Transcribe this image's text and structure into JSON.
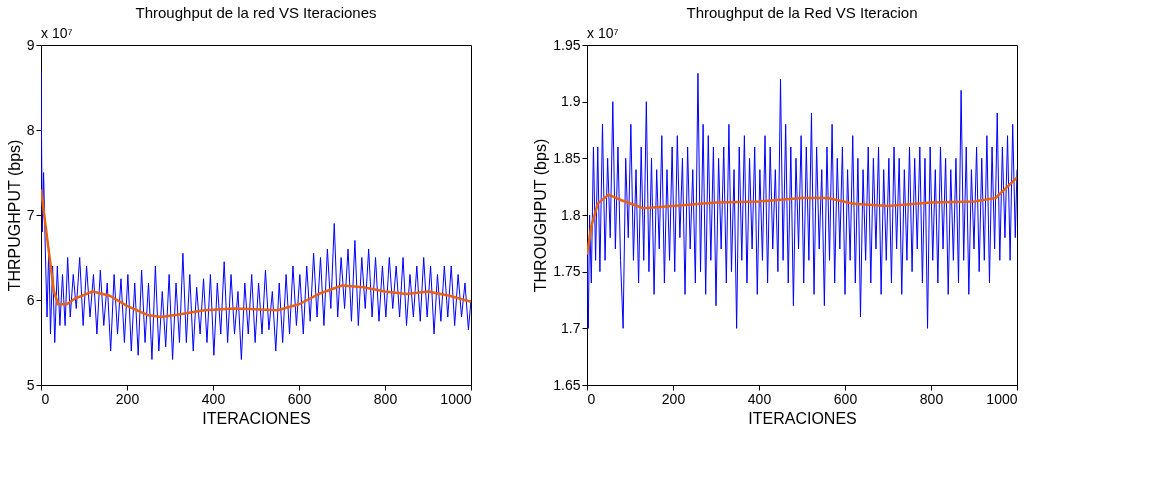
{
  "chart_data": [
    {
      "type": "line",
      "title": "Throughput de la red VS Iteraciones",
      "xlabel": "ITERACIONES",
      "ylabel": "THRPUGHPUT (bps)",
      "annotations": [
        "x 10⁷"
      ],
      "xlim": [
        0,
        1000
      ],
      "xticks": [
        0,
        200,
        400,
        600,
        800,
        1000
      ],
      "ylim": [
        5,
        9
      ],
      "yticks": [
        5,
        6,
        7,
        8,
        9
      ],
      "series": [
        {
          "color": "#0000ff",
          "x": [
            0,
            3,
            6,
            10,
            14,
            18,
            22,
            27,
            32,
            38,
            44,
            50,
            56,
            62,
            68,
            75,
            82,
            90,
            98,
            106,
            114,
            122,
            130,
            138,
            146,
            154,
            162,
            170,
            178,
            186,
            194,
            202,
            210,
            218,
            226,
            234,
            242,
            250,
            258,
            266,
            274,
            282,
            290,
            298,
            306,
            314,
            322,
            330,
            338,
            346,
            354,
            362,
            370,
            378,
            386,
            394,
            402,
            410,
            418,
            426,
            434,
            442,
            450,
            458,
            466,
            474,
            482,
            490,
            498,
            506,
            514,
            522,
            530,
            538,
            546,
            554,
            562,
            570,
            578,
            586,
            594,
            602,
            610,
            618,
            626,
            634,
            642,
            650,
            658,
            666,
            674,
            682,
            690,
            698,
            706,
            714,
            722,
            730,
            738,
            746,
            754,
            762,
            770,
            778,
            786,
            794,
            802,
            810,
            818,
            826,
            834,
            842,
            850,
            858,
            866,
            874,
            882,
            890,
            898,
            906,
            914,
            922,
            930,
            938,
            946,
            954,
            962,
            970,
            978,
            986,
            994,
            1000
          ],
          "values": [
            8.7,
            6.8,
            7.5,
            6.6,
            5.8,
            6.6,
            5.6,
            6.4,
            5.5,
            6.4,
            5.7,
            6.3,
            5.7,
            6.5,
            5.8,
            6.3,
            5.9,
            6.5,
            5.7,
            6.4,
            5.8,
            6.3,
            5.6,
            6.35,
            5.7,
            6.2,
            5.4,
            6.3,
            5.6,
            6.25,
            5.5,
            6.3,
            5.4,
            6.2,
            5.35,
            6.35,
            5.5,
            6.2,
            5.3,
            6.4,
            5.4,
            6.1,
            5.45,
            6.3,
            5.3,
            6.2,
            5.5,
            6.55,
            5.5,
            6.3,
            5.4,
            6.15,
            5.6,
            6.25,
            5.5,
            6.3,
            5.35,
            6.2,
            5.6,
            6.45,
            5.5,
            6.3,
            5.6,
            6.1,
            5.3,
            6.2,
            5.6,
            6.3,
            5.5,
            6.2,
            5.6,
            6.35,
            5.65,
            6.1,
            5.4,
            6.2,
            5.5,
            6.3,
            5.6,
            6.4,
            5.7,
            6.3,
            5.6,
            6.4,
            5.75,
            6.55,
            5.8,
            6.5,
            5.7,
            6.6,
            5.9,
            6.9,
            5.8,
            6.5,
            5.9,
            6.6,
            5.75,
            6.7,
            5.7,
            6.5,
            5.9,
            6.6,
            5.8,
            6.5,
            5.75,
            6.4,
            5.8,
            6.5,
            5.9,
            6.4,
            5.8,
            6.5,
            5.7,
            6.3,
            5.8,
            6.4,
            5.75,
            6.5,
            5.8,
            6.4,
            5.6,
            6.3,
            5.75,
            6.4,
            5.8,
            6.4,
            5.7,
            6.3,
            5.8,
            6.2,
            5.65,
            6.0
          ]
        },
        {
          "color": "#e8620c",
          "x": [
            0,
            10,
            20,
            30,
            40,
            60,
            80,
            120,
            160,
            200,
            250,
            280,
            320,
            380,
            450,
            550,
            600,
            650,
            700,
            750,
            800,
            850,
            900,
            950,
            1000
          ],
          "values": [
            7.3,
            6.9,
            6.5,
            6.1,
            5.95,
            5.95,
            6.02,
            6.1,
            6.05,
            5.93,
            5.82,
            5.8,
            5.83,
            5.88,
            5.9,
            5.88,
            5.95,
            6.08,
            6.17,
            6.15,
            6.1,
            6.07,
            6.1,
            6.05,
            5.98
          ]
        }
      ]
    },
    {
      "type": "line",
      "title": "Throughput de la Red VS Iteracion",
      "xlabel": "ITERACIONES",
      "ylabel": "THROUGHPUT (bps)",
      "annotations": [
        "x 10⁷"
      ],
      "xlim": [
        0,
        1000
      ],
      "xticks": [
        0,
        200,
        400,
        600,
        800,
        1000
      ],
      "ylim": [
        1.65,
        1.95
      ],
      "yticks": [
        1.65,
        1.7,
        1.75,
        1.8,
        1.85,
        1.9,
        1.95
      ],
      "series": [
        {
          "color": "#0000ff",
          "x": [
            0,
            3,
            6,
            10,
            15,
            20,
            25,
            30,
            36,
            42,
            48,
            54,
            60,
            66,
            72,
            78,
            84,
            90,
            96,
            102,
            108,
            114,
            120,
            126,
            132,
            138,
            144,
            150,
            156,
            162,
            168,
            174,
            180,
            186,
            192,
            198,
            204,
            210,
            216,
            222,
            228,
            234,
            240,
            246,
            252,
            258,
            264,
            270,
            276,
            282,
            288,
            294,
            300,
            306,
            312,
            318,
            324,
            330,
            336,
            342,
            348,
            354,
            360,
            366,
            372,
            378,
            384,
            390,
            396,
            402,
            408,
            414,
            420,
            426,
            432,
            438,
            444,
            450,
            456,
            462,
            468,
            474,
            480,
            486,
            492,
            498,
            504,
            510,
            516,
            522,
            528,
            534,
            540,
            546,
            552,
            558,
            564,
            570,
            576,
            582,
            588,
            594,
            600,
            606,
            612,
            618,
            624,
            630,
            636,
            642,
            648,
            654,
            660,
            666,
            672,
            678,
            684,
            690,
            696,
            702,
            708,
            714,
            720,
            726,
            732,
            738,
            744,
            750,
            756,
            762,
            768,
            774,
            780,
            786,
            792,
            798,
            804,
            810,
            816,
            822,
            828,
            834,
            840,
            846,
            852,
            858,
            864,
            870,
            876,
            882,
            888,
            894,
            900,
            906,
            912,
            918,
            924,
            930,
            936,
            942,
            948,
            954,
            960,
            966,
            972,
            978,
            984,
            990,
            996,
            1000
          ],
          "values": [
            1.77,
            1.7,
            1.8,
            1.74,
            1.86,
            1.76,
            1.86,
            1.75,
            1.88,
            1.76,
            1.85,
            1.78,
            1.9,
            1.77,
            1.86,
            1.76,
            1.7,
            1.85,
            1.78,
            1.88,
            1.76,
            1.84,
            1.74,
            1.86,
            1.76,
            1.9,
            1.75,
            1.85,
            1.73,
            1.84,
            1.77,
            1.87,
            1.74,
            1.84,
            1.76,
            1.86,
            1.75,
            1.87,
            1.78,
            1.85,
            1.73,
            1.86,
            1.77,
            1.84,
            1.74,
            1.925,
            1.75,
            1.88,
            1.73,
            1.87,
            1.76,
            1.86,
            1.72,
            1.85,
            1.77,
            1.86,
            1.74,
            1.88,
            1.75,
            1.84,
            1.7,
            1.86,
            1.76,
            1.87,
            1.74,
            1.85,
            1.77,
            1.86,
            1.73,
            1.84,
            1.76,
            1.87,
            1.74,
            1.86,
            1.77,
            1.84,
            1.75,
            1.92,
            1.76,
            1.88,
            1.74,
            1.86,
            1.72,
            1.85,
            1.77,
            1.87,
            1.74,
            1.86,
            1.76,
            1.89,
            1.73,
            1.86,
            1.77,
            1.84,
            1.72,
            1.86,
            1.76,
            1.88,
            1.74,
            1.85,
            1.77,
            1.86,
            1.73,
            1.84,
            1.76,
            1.87,
            1.74,
            1.85,
            1.71,
            1.84,
            1.76,
            1.86,
            1.74,
            1.85,
            1.77,
            1.86,
            1.73,
            1.84,
            1.76,
            1.85,
            1.74,
            1.86,
            1.77,
            1.85,
            1.73,
            1.84,
            1.76,
            1.86,
            1.75,
            1.85,
            1.77,
            1.86,
            1.74,
            1.85,
            1.7,
            1.86,
            1.76,
            1.84,
            1.74,
            1.86,
            1.77,
            1.85,
            1.73,
            1.84,
            1.76,
            1.85,
            1.74,
            1.91,
            1.76,
            1.86,
            1.73,
            1.84,
            1.77,
            1.86,
            1.75,
            1.85,
            1.76,
            1.87,
            1.74,
            1.86,
            1.77,
            1.89,
            1.76,
            1.86,
            1.78,
            1.87,
            1.76,
            1.88,
            1.78,
            1.84
          ]
        },
        {
          "color": "#e8620c",
          "x": [
            0,
            10,
            25,
            50,
            80,
            130,
            200,
            300,
            400,
            500,
            560,
            620,
            700,
            800,
            900,
            950,
            1000
          ],
          "values": [
            1.765,
            1.79,
            1.81,
            1.818,
            1.813,
            1.806,
            1.808,
            1.811,
            1.812,
            1.815,
            1.815,
            1.81,
            1.808,
            1.811,
            1.812,
            1.815,
            1.833
          ]
        }
      ]
    }
  ]
}
